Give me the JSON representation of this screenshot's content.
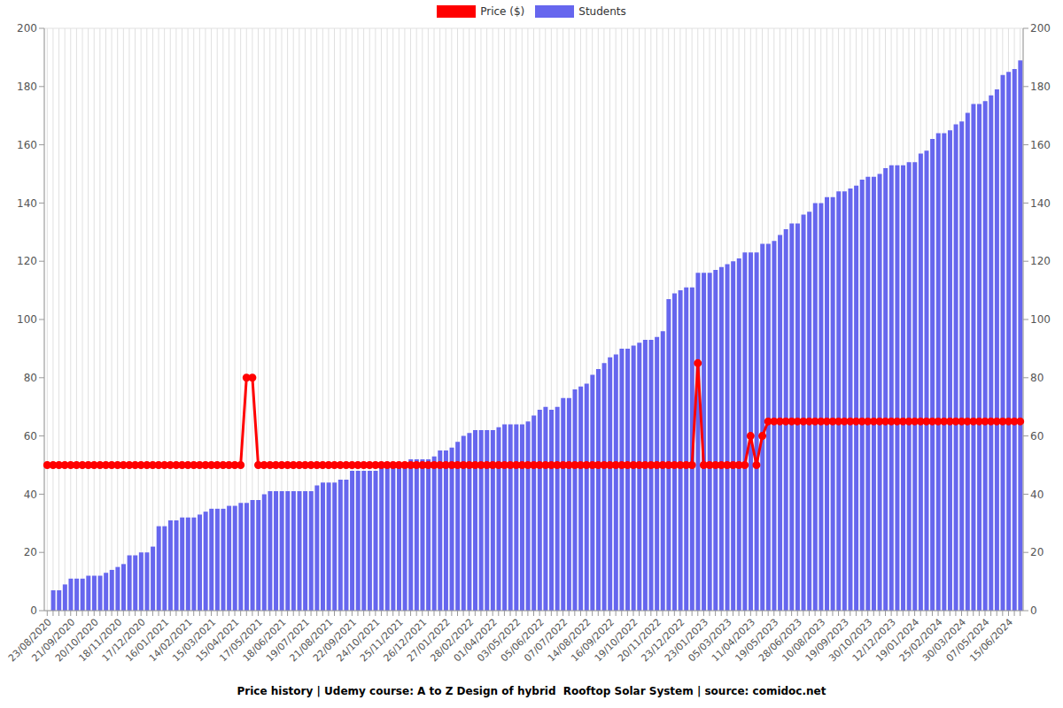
{
  "chart_data": {
    "type": "bar",
    "title": "Price history | Udemy course: A to Z Design of hybrid  Rooftop Solar System | source: comidoc.net",
    "categories": [
      "23/08/2020",
      null,
      null,
      null,
      "21/09/2020",
      null,
      null,
      null,
      "20/10/2020",
      null,
      null,
      null,
      "18/11/2020",
      null,
      null,
      null,
      "17/12/2020",
      null,
      null,
      null,
      "16/01/2021",
      null,
      null,
      null,
      "14/02/2021",
      null,
      null,
      null,
      "15/03/2021",
      null,
      null,
      null,
      "15/04/2021",
      null,
      null,
      null,
      "17/05/2021",
      null,
      null,
      null,
      "18/06/2021",
      null,
      null,
      null,
      "19/07/2021",
      null,
      null,
      null,
      "21/08/2021",
      null,
      null,
      null,
      "22/09/2021",
      null,
      null,
      null,
      "24/10/2021",
      null,
      null,
      null,
      "25/11/2021",
      null,
      null,
      null,
      "26/12/2021",
      null,
      null,
      null,
      "27/01/2022",
      null,
      null,
      null,
      "28/02/2022",
      null,
      null,
      null,
      "01/04/2022",
      null,
      null,
      null,
      "03/05/2022",
      null,
      null,
      null,
      "05/06/2022",
      null,
      null,
      null,
      "07/07/2022",
      null,
      null,
      null,
      "14/08/2022",
      null,
      null,
      null,
      "16/09/2022",
      null,
      null,
      null,
      "19/10/2022",
      null,
      null,
      null,
      "20/11/2022",
      null,
      null,
      null,
      "23/12/2022",
      null,
      null,
      null,
      "23/01/2023",
      null,
      null,
      null,
      "05/03/2023",
      null,
      null,
      null,
      "11/04/2023",
      null,
      null,
      null,
      "19/05/2023",
      null,
      null,
      null,
      "28/06/2023",
      null,
      null,
      null,
      "10/08/2023",
      null,
      null,
      null,
      "19/09/2023",
      null,
      null,
      null,
      "30/10/2023",
      null,
      null,
      null,
      "12/12/2023",
      null,
      null,
      null,
      "19/01/2024",
      null,
      null,
      null,
      "25/02/2024",
      null,
      null,
      null,
      "30/03/2024",
      null,
      null,
      null,
      "07/05/2024",
      null,
      null,
      null,
      "15/06/2024",
      null,
      null
    ],
    "series": [
      {
        "name": "Price ($)",
        "color": "#ff0000",
        "type": "line",
        "marker": "circle",
        "values": [
          50,
          50,
          50,
          50,
          50,
          50,
          50,
          50,
          50,
          50,
          50,
          50,
          50,
          50,
          50,
          50,
          50,
          50,
          50,
          50,
          50,
          50,
          50,
          50,
          50,
          50,
          50,
          50,
          50,
          50,
          50,
          50,
          50,
          50,
          80,
          80,
          50,
          50,
          50,
          50,
          50,
          50,
          50,
          50,
          50,
          50,
          50,
          50,
          50,
          50,
          50,
          50,
          50,
          50,
          50,
          50,
          50,
          50,
          50,
          50,
          50,
          50,
          50,
          50,
          50,
          50,
          50,
          50,
          50,
          50,
          50,
          50,
          50,
          50,
          50,
          50,
          50,
          50,
          50,
          50,
          50,
          50,
          50,
          50,
          50,
          50,
          50,
          50,
          50,
          50,
          50,
          50,
          50,
          50,
          50,
          50,
          50,
          50,
          50,
          50,
          50,
          50,
          50,
          50,
          50,
          50,
          50,
          50,
          50,
          50,
          50,
          85,
          50,
          50,
          50,
          50,
          50,
          50,
          50,
          50,
          60,
          50,
          60,
          65,
          65,
          65,
          65,
          65,
          65,
          65,
          65,
          65,
          65,
          65,
          65,
          65,
          65,
          65,
          65,
          65,
          65,
          65,
          65,
          65,
          65,
          65,
          65,
          65,
          65,
          65,
          65,
          65,
          65,
          65,
          65,
          65,
          65,
          65,
          65,
          65,
          65,
          65,
          65,
          65,
          65,
          65,
          65
        ]
      },
      {
        "name": "Students",
        "color": "#6666ee",
        "type": "bar",
        "values": [
          null,
          7,
          7,
          9,
          11,
          11,
          11,
          12,
          12,
          12,
          13,
          14,
          15,
          16,
          19,
          19,
          20,
          20,
          22,
          29,
          29,
          31,
          31,
          32,
          32,
          32,
          33,
          34,
          35,
          35,
          35,
          36,
          36,
          37,
          37,
          38,
          38,
          40,
          41,
          41,
          41,
          41,
          41,
          41,
          41,
          41,
          43,
          44,
          44,
          44,
          45,
          45,
          48,
          48,
          48,
          48,
          48,
          50,
          50,
          50,
          50,
          51,
          52,
          52,
          52,
          52,
          53,
          55,
          55,
          56,
          58,
          60,
          61,
          62,
          62,
          62,
          62,
          63,
          64,
          64,
          64,
          64,
          65,
          67,
          69,
          70,
          69,
          70,
          73,
          73,
          76,
          77,
          78,
          81,
          83,
          85,
          87,
          88,
          90,
          90,
          91,
          92,
          93,
          93,
          94,
          96,
          107,
          109,
          110,
          111,
          111,
          116,
          116,
          116,
          117,
          118,
          119,
          120,
          121,
          123,
          123,
          123,
          126,
          126,
          127,
          129,
          131,
          133,
          133,
          136,
          137,
          140,
          140,
          142,
          142,
          144,
          144,
          145,
          146,
          148,
          149,
          149,
          150,
          152,
          153,
          153,
          153,
          154,
          154,
          157,
          158,
          162,
          164,
          164,
          165,
          167,
          168,
          171,
          174,
          174,
          175,
          177,
          179,
          184,
          185,
          186,
          189
        ]
      }
    ],
    "ylim": [
      0,
      200
    ],
    "yticks": [
      0,
      20,
      40,
      60,
      80,
      100,
      120,
      140,
      160,
      180,
      200
    ],
    "y2lim": [
      0,
      200
    ],
    "y2ticks": [
      0,
      20,
      40,
      60,
      80,
      100,
      120,
      140,
      160,
      180,
      200
    ],
    "grid": true,
    "legend": "top"
  }
}
